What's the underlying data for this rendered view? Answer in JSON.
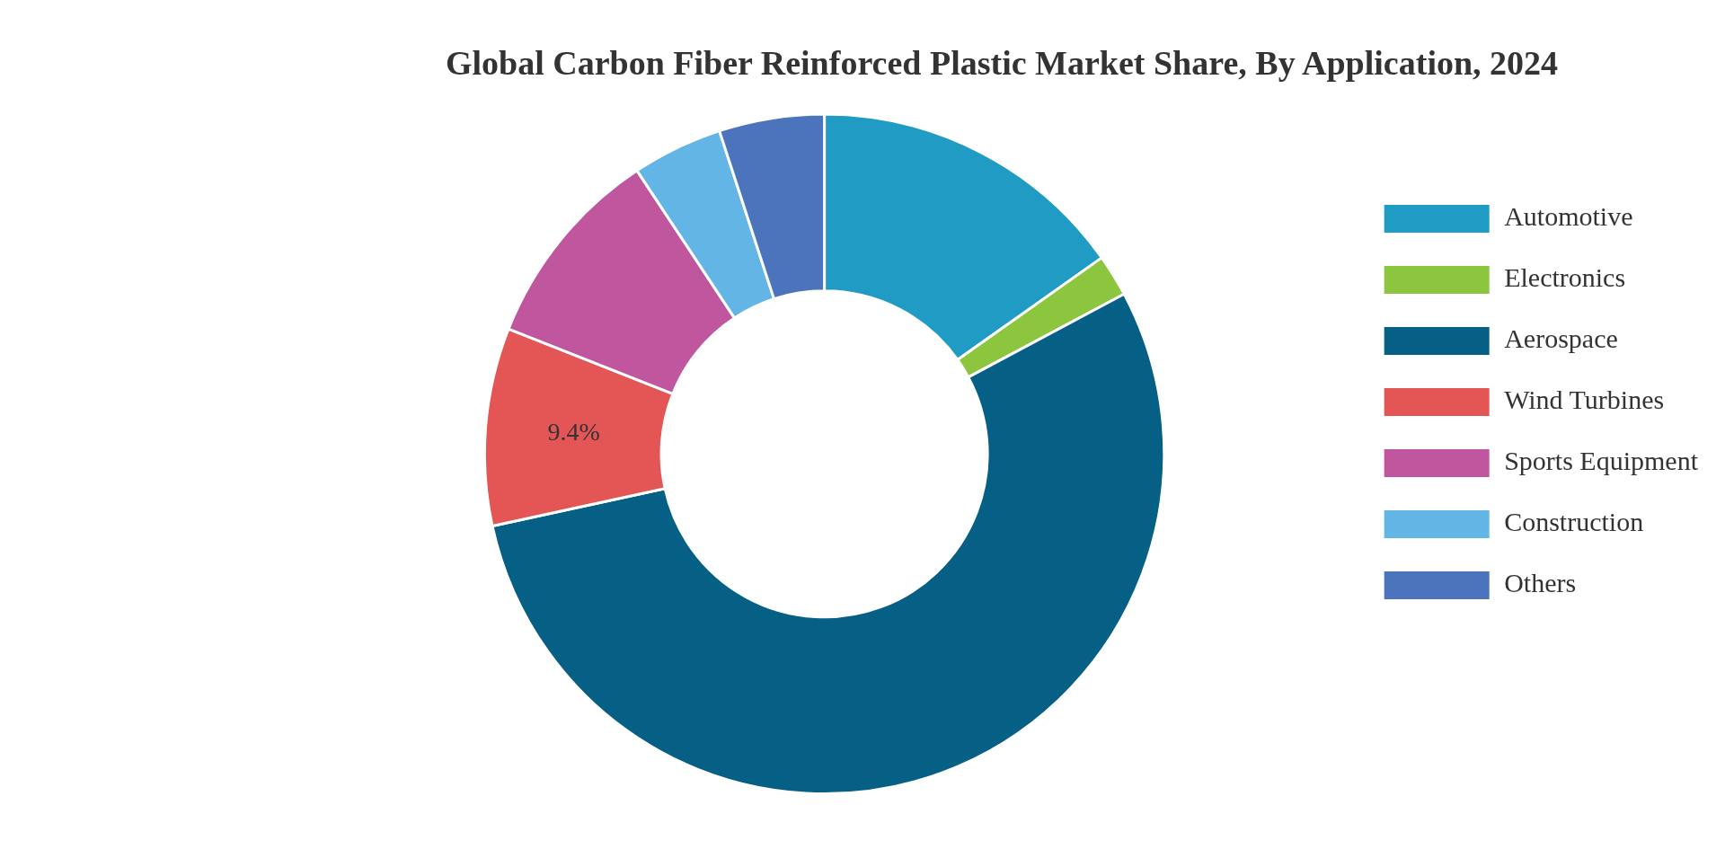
{
  "chart_data": {
    "type": "donut",
    "title": "Global Carbon Fiber Reinforced Plastic Market Share, By Application, 2024",
    "categories": [
      "Automotive",
      "Electronics",
      "Aerospace",
      "Wind Turbines",
      "Sports Equipment",
      "Construction",
      "Others"
    ],
    "values": [
      15.2,
      2.0,
      54.4,
      9.4,
      9.7,
      4.3,
      5.0
    ],
    "colors": [
      "#1f9bc4",
      "#8cc63f",
      "#065f85",
      "#e45555",
      "#c0569e",
      "#63b5e5",
      "#4b74bd"
    ],
    "value_labels": [
      null,
      null,
      null,
      "9.4%",
      null,
      null,
      null
    ],
    "legend": "right"
  }
}
